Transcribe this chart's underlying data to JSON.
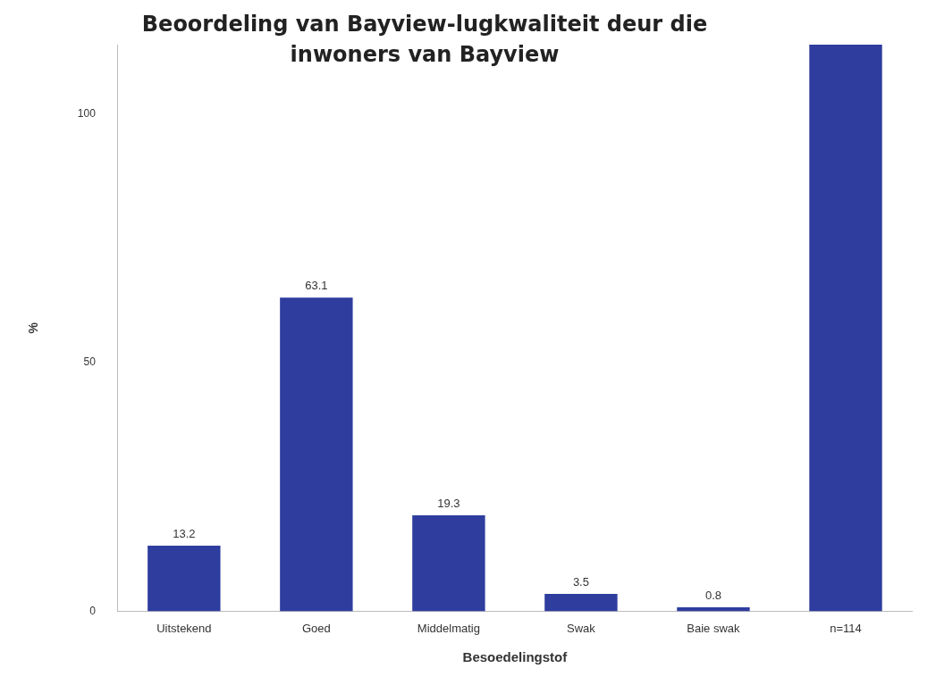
{
  "chart_data": {
    "type": "bar",
    "title": "Beoordeling van Bayview-lugkwaliteit deur die inwoners van Bayview",
    "xlabel": "Besoedelingstof",
    "ylabel": "%",
    "categories": [
      "Uitstekend",
      "Goed",
      "Middelmatig",
      "Swak",
      "Baie swak",
      "n=114"
    ],
    "values": [
      13.2,
      63.1,
      19.3,
      3.5,
      0.8,
      114
    ],
    "value_labels": [
      "13.2",
      "63.1",
      "19.3",
      "3.5",
      "0.8",
      null
    ],
    "color": "#2e3d9e",
    "ylim": [
      0,
      114
    ],
    "yticks": [
      0,
      50,
      100
    ],
    "grid": false,
    "legend": false
  }
}
